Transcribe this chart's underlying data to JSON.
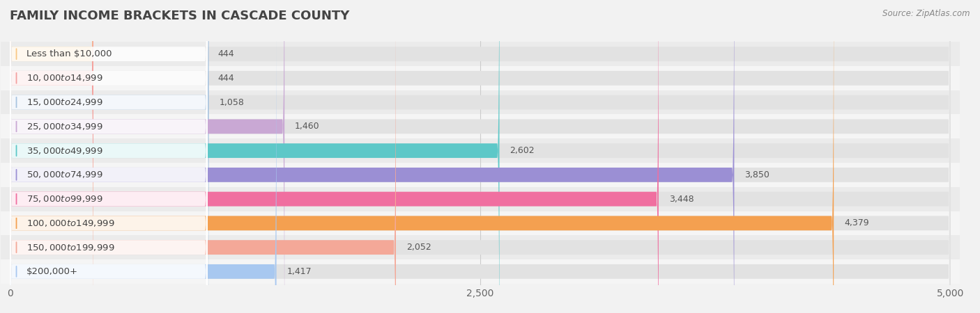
{
  "title": "FAMILY INCOME BRACKETS IN CASCADE COUNTY",
  "source": "Source: ZipAtlas.com",
  "categories": [
    "Less than $10,000",
    "$10,000 to $14,999",
    "$15,000 to $24,999",
    "$25,000 to $34,999",
    "$35,000 to $49,999",
    "$50,000 to $74,999",
    "$75,000 to $99,999",
    "$100,000 to $149,999",
    "$150,000 to $199,999",
    "$200,000+"
  ],
  "values": [
    444,
    444,
    1058,
    1460,
    2602,
    3850,
    3448,
    4379,
    2052,
    1417
  ],
  "bar_colors": [
    "#f9c784",
    "#f4a0a0",
    "#a8c4e0",
    "#c9a8d4",
    "#5dc8c8",
    "#9b8fd4",
    "#f06fa0",
    "#f4a050",
    "#f4a898",
    "#a8c8f0"
  ],
  "xlim": [
    0,
    5000
  ],
  "xticks": [
    0,
    2500,
    5000
  ],
  "xtick_labels": [
    "0",
    "2,500",
    "5,000"
  ],
  "background_color": "#f2f2f2",
  "bar_bg_color": "#e2e2e2",
  "row_bg_even": "#ebebeb",
  "row_bg_odd": "#f5f5f5",
  "title_fontsize": 13,
  "label_fontsize": 9.5,
  "value_fontsize": 9
}
